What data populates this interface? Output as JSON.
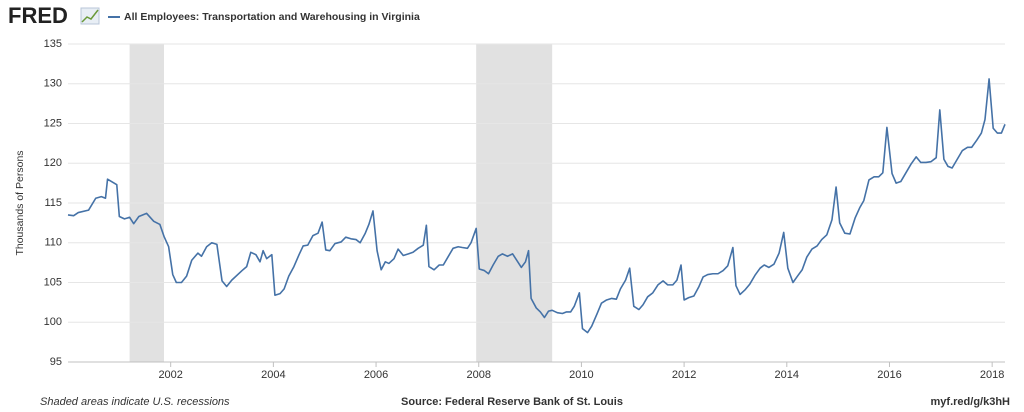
{
  "header": {
    "logo": "FRED"
  },
  "chart_data": {
    "type": "line",
    "ylabel": "Thousands of Persons",
    "note": "Shaded areas indicate U.S. recessions",
    "source": "Source: Federal Reserve Bank of St. Louis",
    "link": "myf.red/g/k3hH",
    "xlim": [
      2000,
      2018.25
    ],
    "xticks": [
      2002,
      2004,
      2006,
      2008,
      2010,
      2012,
      2014,
      2016,
      2018
    ],
    "ylim": [
      95,
      135
    ],
    "yticks": [
      95,
      100,
      105,
      110,
      115,
      120,
      125,
      130,
      135
    ],
    "grid": true,
    "recession_color": "#e1e1e1",
    "recessions": [
      [
        2001.2,
        2001.87
      ],
      [
        2007.95,
        2009.43
      ]
    ],
    "x": [
      2000.0,
      2000.11,
      2000.2,
      2000.4,
      2000.54,
      2000.65,
      2000.73,
      2000.77,
      2000.95,
      2001.0,
      2001.1,
      2001.2,
      2001.28,
      2001.38,
      2001.53,
      2001.67,
      2001.79,
      2001.87,
      2001.96,
      2002.04,
      2002.11,
      2002.21,
      2002.31,
      2002.41,
      2002.53,
      2002.6,
      2002.7,
      2002.8,
      2002.9,
      2003.0,
      2003.09,
      2003.19,
      2003.39,
      2003.48,
      2003.56,
      2003.66,
      2003.74,
      2003.8,
      2003.87,
      2003.97,
      2004.03,
      2004.13,
      2004.21,
      2004.3,
      2004.4,
      2004.5,
      2004.58,
      2004.67,
      2004.77,
      2004.87,
      2004.95,
      2005.02,
      2005.1,
      2005.2,
      2005.32,
      2005.41,
      2005.51,
      2005.61,
      2005.69,
      2005.79,
      2005.86,
      2005.94,
      2006.02,
      2006.1,
      2006.18,
      2006.25,
      2006.35,
      2006.43,
      2006.53,
      2006.63,
      2006.72,
      2006.82,
      2006.92,
      2006.98,
      2007.03,
      2007.13,
      2007.23,
      2007.31,
      2007.4,
      2007.5,
      2007.6,
      2007.68,
      2007.78,
      2007.85,
      2007.95,
      2008.01,
      2008.11,
      2008.19,
      2008.28,
      2008.38,
      2008.46,
      2008.56,
      2008.66,
      2008.75,
      2008.83,
      2008.91,
      2008.97,
      2009.02,
      2009.12,
      2009.2,
      2009.28,
      2009.36,
      2009.43,
      2009.53,
      2009.63,
      2009.71,
      2009.79,
      2009.86,
      2009.96,
      2010.02,
      2010.12,
      2010.2,
      2010.3,
      2010.39,
      2010.49,
      2010.59,
      2010.68,
      2010.76,
      2010.86,
      2010.94,
      2011.02,
      2011.12,
      2011.2,
      2011.29,
      2011.39,
      2011.49,
      2011.59,
      2011.68,
      2011.78,
      2011.86,
      2011.94,
      2012.0,
      2012.09,
      2012.19,
      2012.29,
      2012.37,
      2012.46,
      2012.56,
      2012.66,
      2012.76,
      2012.85,
      2012.95,
      2013.01,
      2013.09,
      2013.19,
      2013.28,
      2013.38,
      2013.48,
      2013.56,
      2013.65,
      2013.75,
      2013.85,
      2013.94,
      2014.02,
      2014.12,
      2014.22,
      2014.3,
      2014.39,
      2014.49,
      2014.59,
      2014.68,
      2014.78,
      2014.88,
      2014.96,
      2015.03,
      2015.13,
      2015.23,
      2015.33,
      2015.42,
      2015.5,
      2015.6,
      2015.7,
      2015.79,
      2015.87,
      2015.95,
      2016.05,
      2016.13,
      2016.22,
      2016.32,
      2016.42,
      2016.52,
      2016.61,
      2016.71,
      2016.81,
      2016.91,
      2016.98,
      2017.06,
      2017.14,
      2017.22,
      2017.32,
      2017.42,
      2017.52,
      2017.6,
      2017.7,
      2017.79,
      2017.86,
      2017.94,
      2018.02,
      2018.1,
      2018.18,
      2018.25
    ],
    "series": [
      {
        "name": "All Employees: Transportation and Warehousing in Virginia",
        "color": "#4572a7",
        "values": [
          113.5,
          113.4,
          113.8,
          114.1,
          115.6,
          115.8,
          115.6,
          118.0,
          117.3,
          113.3,
          113.0,
          113.2,
          112.4,
          113.3,
          113.7,
          112.7,
          112.3,
          110.8,
          109.5,
          106.0,
          105.0,
          105.0,
          105.8,
          107.8,
          108.7,
          108.3,
          109.5,
          110.0,
          109.8,
          105.2,
          104.5,
          105.3,
          106.5,
          107.0,
          108.8,
          108.5,
          107.6,
          109.0,
          108.0,
          108.5,
          103.4,
          103.6,
          104.2,
          105.8,
          107.0,
          108.5,
          109.6,
          109.7,
          110.9,
          111.2,
          112.6,
          109.1,
          109.0,
          109.9,
          110.1,
          110.7,
          110.5,
          110.4,
          110.0,
          111.2,
          112.3,
          114.0,
          109.0,
          106.6,
          107.6,
          107.4,
          108.0,
          109.2,
          108.4,
          108.6,
          108.8,
          109.3,
          109.7,
          112.2,
          107.0,
          106.6,
          107.2,
          107.2,
          108.2,
          109.3,
          109.5,
          109.4,
          109.3,
          110.0,
          111.8,
          106.7,
          106.5,
          106.1,
          107.2,
          108.3,
          108.6,
          108.3,
          108.6,
          107.7,
          106.9,
          107.6,
          109.0,
          103.0,
          101.8,
          101.3,
          100.6,
          101.4,
          101.5,
          101.2,
          101.1,
          101.3,
          101.3,
          102.0,
          103.7,
          99.2,
          98.7,
          99.5,
          101.0,
          102.4,
          102.8,
          103.0,
          102.9,
          104.2,
          105.3,
          106.8,
          102.0,
          101.6,
          102.2,
          103.2,
          103.7,
          104.7,
          105.2,
          104.7,
          104.7,
          105.3,
          107.2,
          102.8,
          103.1,
          103.3,
          104.5,
          105.7,
          106.0,
          106.1,
          106.1,
          106.5,
          107.1,
          109.4,
          104.6,
          103.5,
          104.1,
          104.8,
          105.9,
          106.8,
          107.2,
          106.9,
          107.3,
          108.7,
          111.3,
          106.8,
          105.0,
          105.9,
          106.6,
          108.2,
          109.2,
          109.6,
          110.4,
          111.0,
          112.9,
          117.0,
          112.5,
          111.2,
          111.1,
          113.1,
          114.4,
          115.3,
          117.9,
          118.3,
          118.3,
          118.8,
          124.5,
          118.7,
          117.5,
          117.7,
          118.8,
          119.9,
          120.8,
          120.1,
          120.1,
          120.2,
          120.7,
          126.7,
          120.5,
          119.6,
          119.4,
          120.5,
          121.6,
          122.0,
          122.0,
          122.9,
          123.8,
          125.5,
          130.6,
          124.4,
          123.8,
          123.8,
          124.9
        ]
      }
    ]
  }
}
